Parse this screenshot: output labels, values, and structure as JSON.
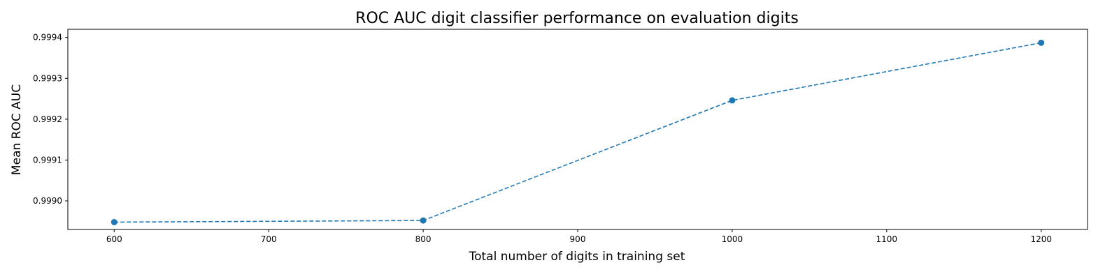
{
  "chart_data": {
    "type": "line",
    "title": "ROC AUC digit classifier performance on evaluation digits",
    "xlabel": "Total number of digits in training set",
    "ylabel": "Mean ROC AUC",
    "xlim": [
      570,
      1230
    ],
    "ylim": [
      0.99893,
      0.99942
    ],
    "xticks": [
      600,
      700,
      800,
      900,
      1000,
      1100,
      1200
    ],
    "xtick_labels": [
      "600",
      "700",
      "800",
      "900",
      "1000",
      "1100",
      "1200"
    ],
    "yticks": [
      0.999,
      0.9991,
      0.9992,
      0.9993,
      0.9994
    ],
    "ytick_labels": [
      "0.9990",
      "0.9991",
      "0.9992",
      "0.9993",
      "0.9994"
    ],
    "grid": false,
    "series": [
      {
        "name": "Mean ROC AUC",
        "color": "#1f77b4",
        "line_style": "dashed",
        "marker": "circle",
        "x": [
          600,
          800,
          1000,
          1200
        ],
        "y": [
          0.998948,
          0.998952,
          0.999246,
          0.999387
        ]
      }
    ]
  }
}
